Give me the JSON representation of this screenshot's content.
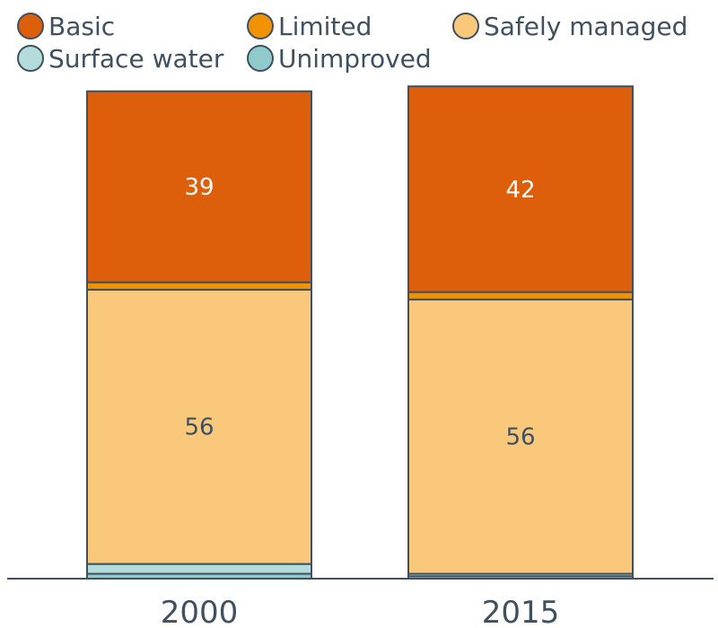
{
  "chart_data": {
    "type": "bar",
    "stacked": true,
    "categories": [
      "2000",
      "2015"
    ],
    "series": [
      {
        "name": "Unimproved",
        "color": "#8fcbca",
        "values": [
          1,
          0.5
        ]
      },
      {
        "name": "Surface water",
        "color": "#b4dcda",
        "values": [
          2,
          0.5
        ]
      },
      {
        "name": "Safely managed",
        "color": "#fac87b",
        "values": [
          56,
          56
        ],
        "labels": [
          "56",
          "56"
        ],
        "label_color": "#3f5060"
      },
      {
        "name": "Limited",
        "color": "#f39200",
        "values": [
          1.5,
          1.5
        ]
      },
      {
        "name": "Basic",
        "color": "#de5f0b",
        "values": [
          39,
          42
        ],
        "labels": [
          "39",
          "42"
        ],
        "label_color": "#ffffff"
      }
    ],
    "legend": {
      "position": "top",
      "order": [
        "Basic",
        "Limited",
        "Safely managed",
        "Surface water",
        "Unimproved"
      ]
    },
    "ylim": [
      0,
      100
    ],
    "title": "",
    "xlabel": "",
    "ylabel": "",
    "grid": false,
    "edge_color": "#3f5060"
  }
}
